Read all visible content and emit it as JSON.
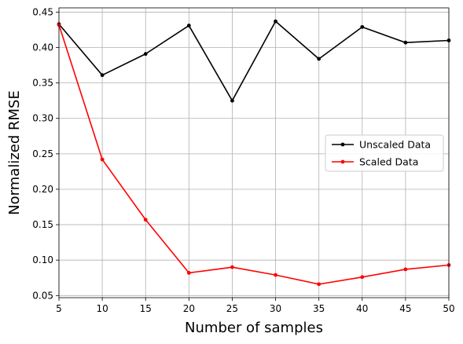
{
  "chart_data": {
    "type": "line",
    "title": "",
    "xlabel": "Number of samples",
    "ylabel": "Normalized RMSE",
    "x": [
      5,
      10,
      15,
      20,
      25,
      30,
      35,
      40,
      45,
      50
    ],
    "xlim": [
      5,
      50
    ],
    "ylim": [
      0.047,
      0.456
    ],
    "xticks": [
      5,
      10,
      15,
      20,
      25,
      30,
      35,
      40,
      45,
      50
    ],
    "yticks": [
      0.05,
      0.1,
      0.15,
      0.2,
      0.25,
      0.3,
      0.35,
      0.4,
      0.45
    ],
    "ytick_labels": [
      "0.05",
      "0.10",
      "0.15",
      "0.20",
      "0.25",
      "0.30",
      "0.35",
      "0.40",
      "0.45"
    ],
    "grid": true,
    "legend_position": "center-right",
    "series": [
      {
        "name": "Unscaled Data",
        "color": "#000000",
        "marker": "dot",
        "values": [
          0.433,
          0.361,
          0.391,
          0.431,
          0.325,
          0.437,
          0.384,
          0.429,
          0.407,
          0.41
        ]
      },
      {
        "name": "Scaled Data",
        "color": "#ff0000",
        "marker": "dot",
        "values": [
          0.432,
          0.242,
          0.157,
          0.082,
          0.09,
          0.079,
          0.066,
          0.076,
          0.087,
          0.093
        ]
      }
    ]
  }
}
